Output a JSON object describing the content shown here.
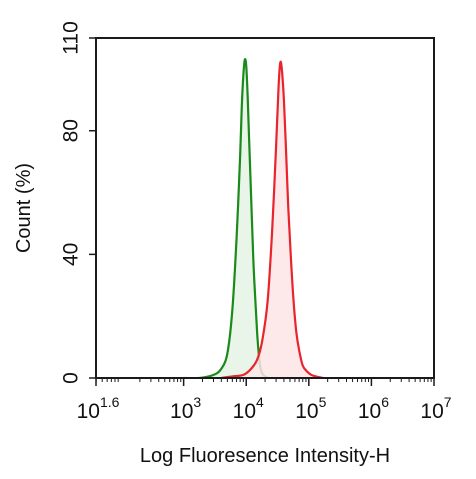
{
  "chart_data": {
    "type": "area",
    "xscale": "log",
    "xlabel": "Log Fluoresence Intensity-H",
    "ylabel": "Count  (%)",
    "xlim": [
      39.8,
      10000000
    ],
    "ylim": [
      0,
      110
    ],
    "yticks": [
      0,
      40,
      80,
      110
    ],
    "xticks": [
      {
        "value": 39.8,
        "base": "10",
        "exp": "1.6"
      },
      {
        "value": 1000,
        "base": "10",
        "exp": "3"
      },
      {
        "value": 10000,
        "base": "10",
        "exp": "4"
      },
      {
        "value": 100000,
        "base": "10",
        "exp": "5"
      },
      {
        "value": 1000000,
        "base": "10",
        "exp": "6"
      },
      {
        "value": 10000000,
        "base": "10",
        "exp": "7"
      }
    ],
    "grid": false,
    "series": [
      {
        "color": "#1a8a1a",
        "fill": "#e4f3e4",
        "x": [
          1000,
          1800,
          3000,
          4000,
          5000,
          6000,
          7000,
          8000,
          8500,
          9000,
          9500,
          10000,
          10500,
          11000,
          12000,
          13000,
          14000,
          15000,
          16000,
          17000,
          18000,
          20000,
          23000
        ],
        "y": [
          0,
          0,
          1,
          3,
          8,
          22,
          45,
          72,
          88,
          98,
          103,
          101,
          92,
          80,
          58,
          38,
          25,
          14,
          7,
          3,
          1.5,
          0.5,
          0
        ]
      },
      {
        "color": "#e8242c",
        "fill": "#fde4e6",
        "x": [
          4000,
          6000,
          9000,
          12000,
          15000,
          18000,
          22000,
          26000,
          30000,
          33000,
          35000,
          37000,
          40000,
          43000,
          47000,
          52000,
          57000,
          63000,
          70000,
          80000,
          95000,
          110000,
          130000,
          170000
        ],
        "y": [
          0,
          0.5,
          1,
          3,
          6,
          12,
          25,
          48,
          75,
          95,
          102,
          100,
          90,
          75,
          55,
          38,
          25,
          15,
          9,
          4,
          2,
          1,
          0.5,
          0
        ]
      }
    ]
  }
}
